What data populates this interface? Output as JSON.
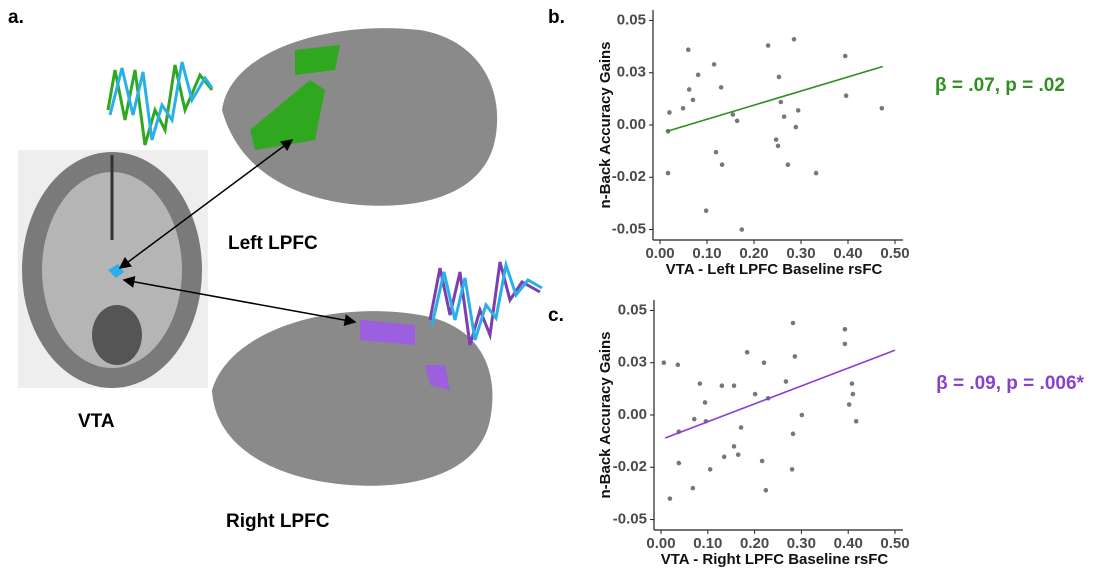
{
  "figure": {
    "panel_labels": [
      "a.",
      "b.",
      "c."
    ],
    "region_labels": [
      "Left LPFC",
      "Right LPFC",
      "VTA"
    ]
  },
  "chart_data": [
    {
      "type": "scatter",
      "xlabel": "VTA - Left LPFC Baseline rsFC",
      "ylabel": "n-Back Accuracy Gains",
      "annotation": "β = .07, p = .02",
      "color": "#2f8f1f",
      "point_color": "#777777",
      "x": [
        0.017,
        0.017,
        0.02,
        0.049,
        0.06,
        0.062,
        0.07,
        0.081,
        0.098,
        0.115,
        0.119,
        0.132,
        0.13,
        0.155,
        0.164,
        0.174,
        0.23,
        0.247,
        0.251,
        0.253,
        0.257,
        0.264,
        0.272,
        0.285,
        0.289,
        0.294,
        0.332,
        0.394,
        0.396,
        0.472
      ],
      "y": [
        -0.023,
        -0.003,
        0.006,
        0.008,
        0.036,
        0.017,
        0.012,
        0.024,
        -0.041,
        0.029,
        -0.013,
        -0.019,
        0.018,
        0.005,
        0.002,
        -0.05,
        0.038,
        -0.007,
        -0.01,
        0.023,
        0.011,
        0.004,
        -0.019,
        0.041,
        -0.001,
        0.007,
        -0.023,
        0.033,
        0.014,
        0.008
      ],
      "fit": {
        "x": [
          0.015,
          0.474
        ],
        "y": [
          -0.003,
          0.028
        ]
      },
      "xlim": [
        -0.015,
        0.5
      ],
      "ylim": [
        -0.055,
        0.055
      ],
      "xticks": [
        {
          "value": 0,
          "label": "0.00"
        },
        {
          "value": 0.1,
          "label": "0.10"
        },
        {
          "value": 0.2,
          "label": "0.20"
        },
        {
          "value": 0.3,
          "label": "0.30"
        },
        {
          "value": 0.4,
          "label": "0.40"
        },
        {
          "value": 0.5,
          "label": "0.50"
        }
      ],
      "yticks": [
        -0.05,
        {
          "value": -0.025,
          "label": "-0.02"
        },
        {
          "value": 0,
          "label": "0.00"
        },
        {
          "value": 0.025,
          "label": "0.03"
        },
        0.05
      ]
    },
    {
      "type": "scatter",
      "xlabel": "VTA - Right LPFC Baseline rsFC",
      "ylabel": "n-Back Accuracy Gains",
      "annotation": "β = .09, p = .006*",
      "color": "#8a3fd1",
      "point_color": "#777777",
      "x": [
        0.006,
        0.036,
        0.019,
        0.038,
        0.038,
        0.068,
        0.071,
        0.083,
        0.094,
        0.096,
        0.105,
        0.13,
        0.135,
        0.156,
        0.156,
        0.165,
        0.171,
        0.184,
        0.201,
        0.216,
        0.22,
        0.224,
        0.229,
        0.267,
        0.28,
        0.282,
        0.282,
        0.286,
        0.301,
        0.402,
        0.393,
        0.393,
        0.408,
        0.41,
        0.417
      ],
      "y": [
        0.025,
        0.024,
        -0.04,
        -0.023,
        -0.008,
        -0.035,
        -0.002,
        0.015,
        0.006,
        -0.003,
        -0.026,
        0.014,
        -0.02,
        0.014,
        -0.015,
        -0.019,
        -0.006,
        0.03,
        0.01,
        -0.022,
        0.025,
        -0.036,
        0.008,
        0.016,
        -0.026,
        -0.009,
        0.044,
        0.028,
        0,
        0.005,
        0.041,
        0.034,
        0.015,
        0.01,
        -0.003
      ],
      "fit": {
        "x": [
          0.009,
          0.5
        ],
        "y": [
          -0.011,
          0.031
        ]
      },
      "xlim": [
        -0.015,
        0.5
      ],
      "ylim": [
        -0.055,
        0.055
      ],
      "xticks": [
        {
          "value": 0,
          "label": "0.00"
        },
        {
          "value": 0.1,
          "label": "0.10"
        },
        {
          "value": 0.2,
          "label": "0.20"
        },
        {
          "value": 0.3,
          "label": "0.30"
        },
        {
          "value": 0.4,
          "label": "0.40"
        },
        {
          "value": 0.5,
          "label": "0.50"
        }
      ],
      "yticks": [
        -0.05,
        {
          "value": -0.025,
          "label": "-0.02"
        },
        {
          "value": 0,
          "label": "0.00"
        },
        {
          "value": 0.025,
          "label": "0.03"
        },
        0.05
      ]
    }
  ]
}
